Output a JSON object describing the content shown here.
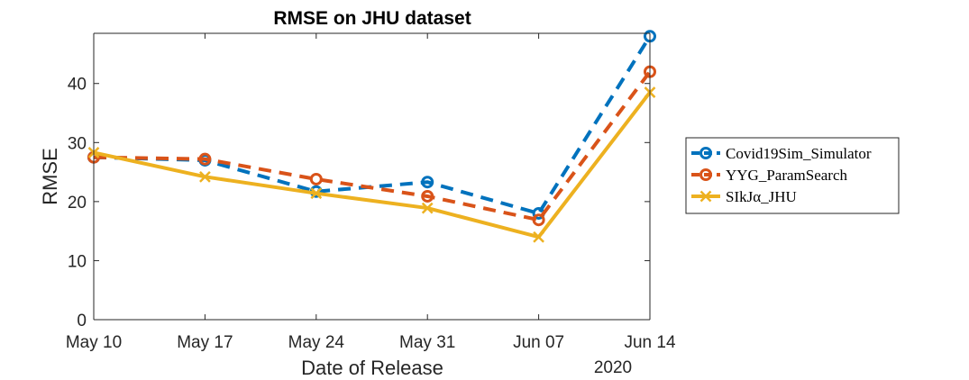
{
  "chart_data": {
    "type": "line",
    "title": "RMSE on JHU dataset",
    "xlabel": "Date of Release",
    "ylabel": "RMSE",
    "x_tick_labels": [
      "May 10",
      "May 17",
      "May 24",
      "May 31",
      "Jun 07",
      "Jun 14"
    ],
    "x_year_label": "2020",
    "x": [
      "2020-05-10",
      "2020-05-17",
      "2020-05-24",
      "2020-05-31",
      "2020-06-07",
      "2020-06-14"
    ],
    "ylim": [
      0,
      48.5
    ],
    "yticks": [
      0,
      10,
      20,
      30,
      40
    ],
    "grid": false,
    "legend_position": "outside-right",
    "series": [
      {
        "name": "Covid19Sim_Simulator",
        "legend_label": "Covid19Sim_Simulator",
        "color": "#0072BD",
        "line_style": "dashed",
        "marker": "circle",
        "values": [
          27.5,
          27.0,
          21.7,
          23.3,
          18.0,
          48.0
        ]
      },
      {
        "name": "YYG_ParamSearch",
        "legend_label": "YYG_ParamSearch",
        "color": "#D95319",
        "line_style": "dashed",
        "marker": "circle",
        "values": [
          27.5,
          27.2,
          23.8,
          20.9,
          16.9,
          42.0
        ]
      },
      {
        "name": "SIkJα_JHU",
        "legend_label": "SIkJα_JHU",
        "color": "#EDB120",
        "line_style": "solid",
        "marker": "x",
        "values": [
          28.3,
          24.2,
          21.4,
          18.9,
          14.0,
          38.5
        ]
      }
    ]
  }
}
